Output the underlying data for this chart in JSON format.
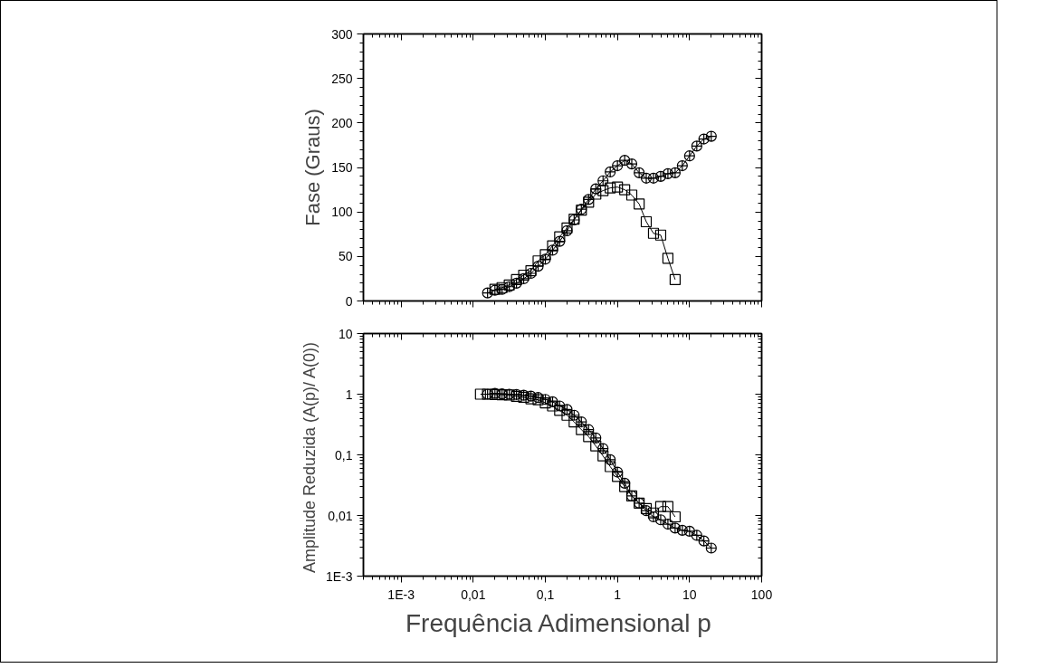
{
  "chart_data": [
    {
      "type": "line",
      "ylabel": "Fase (Graus)",
      "log": "x",
      "grid": false,
      "tick_labels": "y",
      "line_style": "solid",
      "xlim": [
        0.0003,
        100
      ],
      "ylim": [
        0,
        300
      ],
      "xticks": [
        {
          "value": 0.001,
          "label": null
        },
        {
          "value": 0.01,
          "label": null
        },
        {
          "value": 0.1,
          "label": null
        },
        {
          "value": 1,
          "label": null
        },
        {
          "value": 10,
          "label": null
        },
        {
          "value": 100,
          "label": null
        }
      ],
      "yticks": [
        0,
        50,
        100,
        150,
        200,
        250,
        300
      ],
      "series": [
        {
          "color": "#000000",
          "marker": "square",
          "x": [
            0.02,
            0.0251,
            0.0316,
            0.0398,
            0.0501,
            0.0631,
            0.0794,
            0.1,
            0.126,
            0.158,
            0.2,
            0.251,
            0.316,
            0.398,
            0.501,
            0.631,
            0.794,
            1,
            1.26,
            1.58,
            2,
            2.51,
            3.16,
            3.98,
            5.01,
            6.31
          ],
          "values": [
            13,
            15,
            18,
            24,
            29,
            34,
            45,
            52,
            62,
            72,
            82,
            92,
            102,
            111,
            120,
            124,
            127,
            128,
            125,
            119,
            109,
            89,
            76,
            74,
            48,
            24
          ]
        },
        {
          "color": "#000000",
          "marker": "circle",
          "x": [
            0.0158,
            0.02,
            0.0251,
            0.0316,
            0.0398,
            0.0501,
            0.0631,
            0.0794,
            0.1,
            0.126,
            0.158,
            0.2,
            0.251,
            0.316,
            0.398,
            0.501,
            0.631,
            0.794,
            1,
            1.26,
            1.58,
            2,
            2.51,
            3.16,
            3.98,
            5.01,
            6.31,
            7.94,
            10,
            12.6,
            15.8,
            20
          ],
          "values": [
            9,
            12,
            13,
            16,
            20,
            25,
            31,
            39,
            47,
            57,
            67,
            79,
            91,
            103,
            114,
            126,
            135,
            145,
            152,
            158,
            154,
            144,
            138,
            138,
            140,
            143,
            144,
            152,
            163,
            174,
            182,
            185
          ]
        }
      ]
    },
    {
      "type": "line",
      "xlabel": "Frequência Adimensional  p",
      "ylabel": "Amplitude Reduzida  (A(p)/ A(0))",
      "log": "xy",
      "grid": false,
      "line_style": "solid",
      "xlim": [
        0.0003,
        100
      ],
      "ylim": [
        0.001,
        10
      ],
      "xticks": [
        {
          "value": 0.001,
          "label": "1E-3"
        },
        {
          "value": 0.01,
          "label": "0,01"
        },
        {
          "value": 0.1,
          "label": "0,1"
        },
        1,
        10,
        100
      ],
      "yticks": [
        {
          "value": 0.001,
          "label": "1E-3"
        },
        {
          "value": 0.01,
          "label": "0,01"
        },
        {
          "value": 0.1,
          "label": "0,1"
        },
        1,
        10
      ],
      "series": [
        {
          "color": "#000000",
          "marker": "square",
          "x": [
            0.0126,
            0.0158,
            0.02,
            0.0251,
            0.0316,
            0.0398,
            0.0501,
            0.0631,
            0.0794,
            0.1,
            0.126,
            0.158,
            0.2,
            0.251,
            0.316,
            0.398,
            0.501,
            0.631,
            0.794,
            1,
            1.26,
            1.58,
            2,
            2.51,
            3.16,
            3.98,
            5.01,
            6.31
          ],
          "values": [
            1.0,
            1.0,
            0.99,
            0.98,
            0.97,
            0.92,
            0.89,
            0.84,
            0.81,
            0.72,
            0.64,
            0.54,
            0.45,
            0.35,
            0.26,
            0.2,
            0.14,
            0.096,
            0.064,
            0.044,
            0.03,
            0.021,
            0.016,
            0.013,
            0.011,
            0.014,
            0.014,
            0.0095
          ]
        },
        {
          "color": "#000000",
          "marker": "circle",
          "x": [
            0.0158,
            0.02,
            0.0251,
            0.0316,
            0.0398,
            0.0501,
            0.0631,
            0.0794,
            0.1,
            0.126,
            0.158,
            0.2,
            0.251,
            0.316,
            0.398,
            0.501,
            0.631,
            0.794,
            1,
            1.26,
            1.58,
            2,
            2.51,
            3.16,
            3.98,
            5.01,
            6.31,
            7.94,
            10,
            12.6,
            15.8,
            20
          ],
          "values": [
            1.0,
            1.03,
            1.01,
            1.0,
            0.99,
            0.96,
            0.93,
            0.88,
            0.82,
            0.75,
            0.64,
            0.56,
            0.45,
            0.35,
            0.26,
            0.19,
            0.127,
            0.083,
            0.052,
            0.034,
            0.021,
            0.016,
            0.012,
            0.0095,
            0.0085,
            0.0072,
            0.0062,
            0.0057,
            0.0055,
            0.0047,
            0.0038,
            0.0029
          ]
        }
      ]
    }
  ]
}
